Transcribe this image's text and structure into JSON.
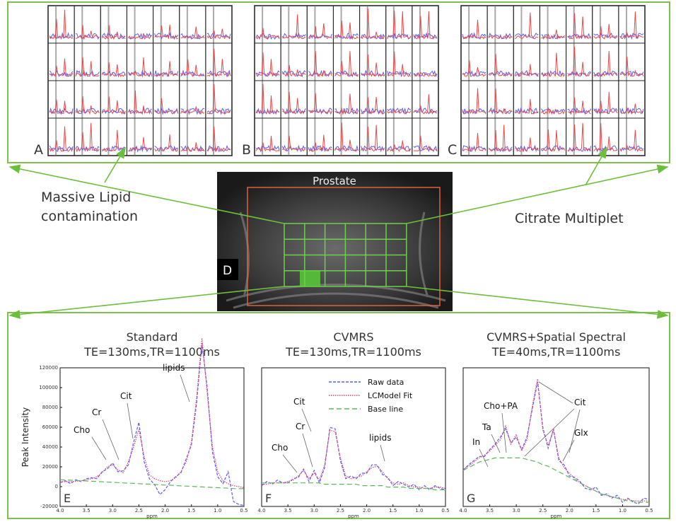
{
  "figure": {
    "top_panels": [
      "A",
      "B",
      "C"
    ],
    "mri": {
      "title": "Prostate",
      "label": "D"
    },
    "callouts": [
      [
        "Massive Lipid",
        "contamination"
      ],
      [
        "Citrate Multiplet"
      ]
    ]
  },
  "chart_data": [
    {
      "type": "line",
      "panel_label": "E",
      "title": "Standard",
      "subtitle": "TE=130ms,TR=1100ms",
      "xlabel": "ppm",
      "ylabel": "Peak Intensity",
      "x": [
        4.0,
        3.9,
        3.8,
        3.7,
        3.6,
        3.5,
        3.4,
        3.3,
        3.2,
        3.1,
        3.0,
        2.9,
        2.8,
        2.7,
        2.6,
        2.5,
        2.4,
        2.3,
        2.2,
        2.1,
        2.0,
        1.9,
        1.8,
        1.7,
        1.6,
        1.5,
        1.4,
        1.3,
        1.2,
        1.1,
        1.0,
        0.9,
        0.8,
        0.7,
        0.6,
        0.5
      ],
      "xlim": [
        4.0,
        0.5
      ],
      "xticks": [
        {
          "value": 4.0,
          "label": "4.0"
        },
        3.5,
        {
          "value": 3.0,
          "label": "3.0"
        },
        2.5,
        {
          "value": 2.0,
          "label": "2.0"
        },
        1.5,
        {
          "value": 1.0,
          "label": "1.0"
        },
        0.5
      ],
      "ylim": [
        -20000,
        120000
      ],
      "yticks": [
        -20000,
        0,
        20000,
        40000,
        60000,
        80000,
        100000,
        120000
      ],
      "series": [
        {
          "color": "#5b5bff",
          "style": "dashed",
          "values": [
            4000,
            6000,
            3000,
            7000,
            5000,
            8000,
            9000,
            8000,
            15000,
            18000,
            24000,
            15000,
            16000,
            22000,
            45000,
            65000,
            25000,
            8000,
            2000,
            -8000,
            -3000,
            5000,
            10000,
            14000,
            28000,
            42000,
            85000,
            145000,
            100000,
            35000,
            10000,
            3000,
            15000,
            -15000,
            -18000,
            -19000
          ]
        },
        {
          "color": "#e0406a",
          "style": "dotted",
          "values": [
            5000,
            5000,
            5000,
            5500,
            6000,
            7000,
            8000,
            10000,
            14000,
            20000,
            22000,
            17000,
            14000,
            25000,
            40000,
            58000,
            30000,
            12000,
            8000,
            6000,
            5000,
            6000,
            9000,
            15000,
            25000,
            45000,
            90000,
            150000,
            95000,
            40000,
            15000,
            6000,
            3000,
            1000,
            0,
            -1000
          ]
        },
        {
          "color": "#5cb85c",
          "style": "longdash",
          "values": [
            7000,
            6700,
            6500,
            6200,
            6000,
            5700,
            5400,
            5200,
            4900,
            4600,
            4400,
            4100,
            3800,
            3500,
            3300,
            3000,
            2700,
            2500,
            2200,
            1900,
            1600,
            1400,
            1100,
            800,
            500,
            300,
            0,
            -300,
            -500,
            -800,
            -1100,
            -1300,
            -1600,
            -1900,
            -2100,
            -2000
          ]
        }
      ],
      "annotations": [
        "Cho",
        "Cr",
        "Cit",
        "lipids"
      ]
    },
    {
      "type": "line",
      "panel_label": "F",
      "title": "CVMRS",
      "subtitle": "TE=130ms,TR=1100ms",
      "xlabel": "ppm",
      "legend": "upper right",
      "x": [
        4.0,
        3.9,
        3.8,
        3.7,
        3.6,
        3.5,
        3.4,
        3.3,
        3.2,
        3.1,
        3.0,
        2.9,
        2.8,
        2.7,
        2.6,
        2.5,
        2.4,
        2.3,
        2.2,
        2.1,
        2.0,
        1.9,
        1.8,
        1.7,
        1.6,
        1.5,
        1.4,
        1.3,
        1.2,
        1.1,
        1.0,
        0.9,
        0.8,
        0.7,
        0.6,
        0.5
      ],
      "xlim": [
        4.0,
        0.5
      ],
      "xticks": [
        {
          "value": 4.0,
          "label": "4.0"
        },
        3.5,
        {
          "value": 3.0,
          "label": "3.0"
        },
        2.5,
        {
          "value": 2.0,
          "label": "2.0"
        },
        1.5,
        {
          "value": 1.0,
          "label": "1.0"
        },
        0.5
      ],
      "ylim": [
        0,
        100
      ],
      "series": [
        {
          "name": "Raw data",
          "color": "#5b5bff",
          "style": "dashed",
          "values": [
            15,
            18,
            16,
            19,
            17,
            17,
            20,
            21,
            27,
            18,
            26,
            17,
            28,
            57,
            56,
            33,
            20,
            22,
            20,
            24,
            24,
            30,
            30,
            23,
            21,
            15,
            18,
            16,
            14,
            16,
            12,
            15,
            12,
            15,
            13,
            12
          ]
        },
        {
          "name": "LCModel Fit",
          "color": "#e0406a",
          "style": "dotted",
          "values": [
            16,
            16,
            17,
            17,
            17,
            18,
            19,
            22,
            26,
            20,
            24,
            19,
            30,
            55,
            54,
            35,
            22,
            20,
            21,
            22,
            25,
            28,
            29,
            25,
            20,
            17,
            16,
            17,
            15,
            14,
            14,
            13,
            13,
            14,
            14,
            13
          ]
        },
        {
          "name": "Base line",
          "color": "#5cb85c",
          "style": "longdash",
          "values": [
            17,
            17,
            17,
            17,
            17,
            17,
            17,
            17,
            17,
            17,
            17,
            17,
            16,
            16,
            16,
            16,
            16,
            16,
            16,
            15,
            15,
            15,
            15,
            15,
            14,
            14,
            14,
            14,
            13,
            13,
            13,
            13,
            13,
            12,
            12,
            12
          ]
        }
      ],
      "annotations": [
        "Cit",
        "Cr",
        "Cho",
        "lipids"
      ]
    },
    {
      "type": "line",
      "panel_label": "G",
      "title": "CVMRS+Spatial Spectral",
      "subtitle": "TE=40ms,TR=1100ms",
      "xlabel": "ppm",
      "x": [
        4.0,
        3.9,
        3.8,
        3.7,
        3.6,
        3.5,
        3.4,
        3.3,
        3.2,
        3.1,
        3.0,
        2.9,
        2.8,
        2.7,
        2.6,
        2.5,
        2.4,
        2.3,
        2.2,
        2.1,
        2.0,
        1.9,
        1.8,
        1.7,
        1.6,
        1.5,
        1.4,
        1.3,
        1.2,
        1.1,
        1.0,
        0.9,
        0.8,
        0.7,
        0.6,
        0.5
      ],
      "xlim": [
        4.0,
        0.5
      ],
      "xticks": [
        {
          "value": 4.0,
          "label": "4.0"
        },
        3.5,
        {
          "value": 3.0,
          "label": "3.0"
        },
        2.5,
        {
          "value": 2.0,
          "label": "2.0"
        },
        1.5,
        {
          "value": 1.0,
          "label": "1.0"
        },
        0.5
      ],
      "ylim": [
        0,
        100
      ],
      "series": [
        {
          "color": "#5b5bff",
          "style": "dashed",
          "values": [
            26,
            30,
            33,
            36,
            36,
            41,
            45,
            50,
            56,
            46,
            50,
            41,
            50,
            70,
            90,
            57,
            42,
            56,
            33,
            30,
            22,
            21,
            18,
            13,
            12,
            14,
            8,
            9,
            6,
            8,
            3,
            6,
            3,
            2,
            6,
            5
          ]
        },
        {
          "color": "#e0406a",
          "style": "dotted",
          "values": [
            27,
            29,
            32,
            35,
            37,
            40,
            44,
            48,
            58,
            45,
            52,
            40,
            48,
            72,
            92,
            55,
            44,
            55,
            35,
            28,
            24,
            20,
            17,
            15,
            13,
            11,
            9,
            8,
            7,
            6,
            5,
            5,
            4,
            4,
            4,
            4
          ]
        },
        {
          "color": "#5cb85c",
          "style": "longdash",
          "values": [
            26,
            28,
            30,
            32,
            33,
            34,
            35,
            35,
            35,
            35,
            35,
            35,
            34,
            33,
            32,
            30,
            29,
            27,
            25,
            23,
            21,
            19,
            17,
            15,
            13,
            11,
            9,
            8,
            7,
            6,
            5,
            4,
            4,
            3,
            3,
            3
          ]
        }
      ],
      "annotations": [
        "Cho+PA",
        "Cit",
        "Ta",
        "In",
        "Glx"
      ]
    }
  ]
}
